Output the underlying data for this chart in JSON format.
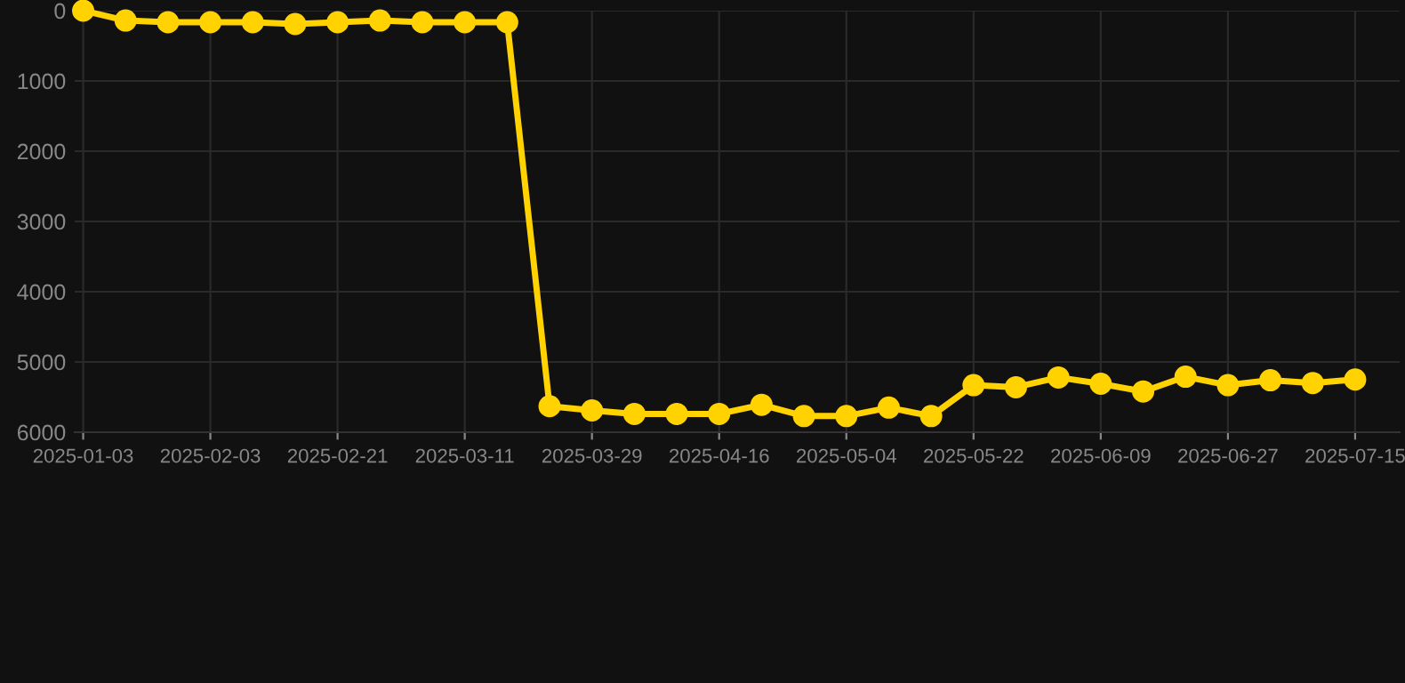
{
  "chart_data": {
    "type": "line",
    "categories": [
      "2025-01-03",
      null,
      null,
      "2025-02-03",
      null,
      null,
      "2025-02-21",
      null,
      null,
      "2025-03-11",
      null,
      null,
      "2025-03-29",
      null,
      null,
      "2025-04-16",
      null,
      null,
      "2025-05-04",
      null,
      null,
      "2025-05-22",
      null,
      null,
      "2025-06-09",
      null,
      null,
      "2025-06-27",
      null,
      null,
      "2025-07-15"
    ],
    "series": [
      {
        "color": "#ffd200",
        "values": [
          0,
          140,
          165,
          165,
          165,
          190,
          165,
          140,
          165,
          165,
          165,
          5630,
          5690,
          5740,
          5740,
          5740,
          5610,
          5770,
          5770,
          5650,
          5770,
          5330,
          5360,
          5220,
          5310,
          5420,
          5210,
          5330,
          5260,
          5300,
          5250
        ]
      }
    ],
    "ylim": [
      6000,
      0
    ],
    "yticks": [
      0,
      1000,
      2000,
      3000,
      4000,
      5000,
      6000
    ],
    "grid": true,
    "marker": "circle",
    "line_style": "solid"
  }
}
